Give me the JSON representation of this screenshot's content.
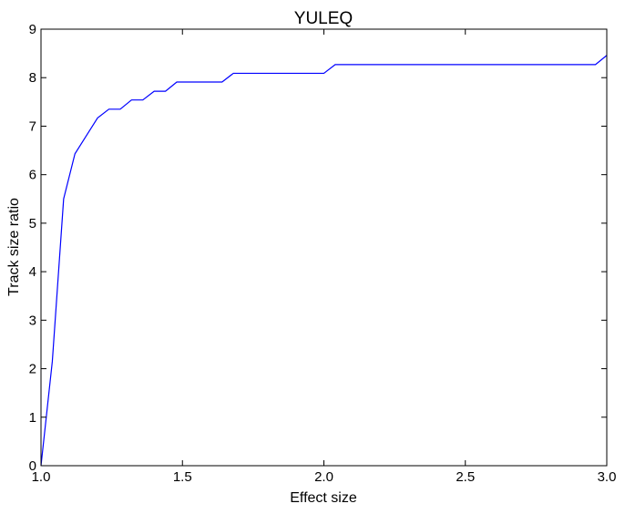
{
  "chart_data": {
    "type": "line",
    "title": "YULEQ",
    "xlabel": "Effect size",
    "ylabel": "Track size ratio",
    "xlim": [
      1.0,
      3.0
    ],
    "ylim": [
      0,
      9
    ],
    "xticks": [
      1.0,
      1.5,
      2.0,
      2.5,
      3.0
    ],
    "xtick_labels": [
      "1.0",
      "1.5",
      "2.0",
      "2.5",
      "3.0"
    ],
    "yticks": [
      0,
      1,
      2,
      3,
      4,
      5,
      6,
      7,
      8,
      9
    ],
    "ytick_labels": [
      "0",
      "1",
      "2",
      "3",
      "4",
      "5",
      "6",
      "7",
      "8",
      "9"
    ],
    "grid": false,
    "series": [
      {
        "color": "#0000ff",
        "x": [
          1.0,
          1.04,
          1.08,
          1.12,
          1.16,
          1.2,
          1.24,
          1.28,
          1.32,
          1.36,
          1.4,
          1.44,
          1.48,
          1.52,
          1.56,
          1.6,
          1.64,
          1.68,
          1.72,
          1.76,
          1.8,
          1.84,
          1.88,
          1.92,
          1.96,
          2.0,
          2.04,
          2.08,
          2.12,
          2.16,
          2.2,
          2.24,
          2.28,
          2.32,
          2.36,
          2.4,
          2.44,
          2.48,
          2.52,
          2.56,
          2.6,
          2.64,
          2.68,
          2.72,
          2.76,
          2.8,
          2.84,
          2.88,
          2.92,
          2.96,
          3.0
        ],
        "y": [
          0.0,
          2.15,
          5.5,
          6.43,
          6.8,
          7.17,
          7.35,
          7.35,
          7.54,
          7.54,
          7.72,
          7.72,
          7.91,
          7.91,
          7.91,
          7.91,
          7.91,
          8.09,
          8.09,
          8.09,
          8.09,
          8.09,
          8.09,
          8.09,
          8.09,
          8.09,
          8.27,
          8.27,
          8.27,
          8.27,
          8.27,
          8.27,
          8.27,
          8.27,
          8.27,
          8.27,
          8.27,
          8.27,
          8.27,
          8.27,
          8.27,
          8.27,
          8.27,
          8.27,
          8.27,
          8.27,
          8.27,
          8.27,
          8.27,
          8.27,
          8.46
        ]
      }
    ]
  }
}
